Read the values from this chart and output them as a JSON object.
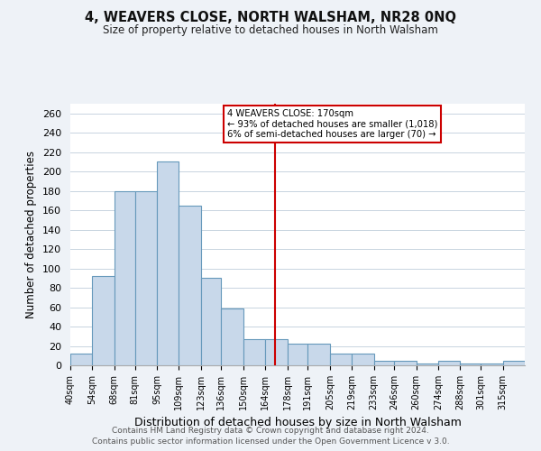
{
  "title": "4, WEAVERS CLOSE, NORTH WALSHAM, NR28 0NQ",
  "subtitle": "Size of property relative to detached houses in North Walsham",
  "xlabel": "Distribution of detached houses by size in North Walsham",
  "ylabel": "Number of detached properties",
  "bin_labels": [
    "40sqm",
    "54sqm",
    "68sqm",
    "81sqm",
    "95sqm",
    "109sqm",
    "123sqm",
    "136sqm",
    "150sqm",
    "164sqm",
    "178sqm",
    "191sqm",
    "205sqm",
    "219sqm",
    "233sqm",
    "246sqm",
    "260sqm",
    "274sqm",
    "288sqm",
    "301sqm",
    "315sqm"
  ],
  "bin_edges": [
    40,
    54,
    68,
    81,
    95,
    109,
    123,
    136,
    150,
    164,
    178,
    191,
    205,
    219,
    233,
    246,
    260,
    274,
    288,
    301,
    315,
    329
  ],
  "bar_heights": [
    12,
    92,
    180,
    180,
    210,
    165,
    90,
    59,
    27,
    27,
    22,
    22,
    12,
    12,
    5,
    5,
    2,
    5,
    2,
    2,
    5
  ],
  "bar_color": "#c8d8ea",
  "bar_edge_color": "#6699bb",
  "vline_x": 170,
  "vline_color": "#cc0000",
  "annotation_line1": "4 WEAVERS CLOSE: 170sqm",
  "annotation_line2": "← 93% of detached houses are smaller (1,018)",
  "annotation_line3": "6% of semi-detached houses are larger (70) →",
  "ylim": [
    0,
    270
  ],
  "yticks": [
    0,
    20,
    40,
    60,
    80,
    100,
    120,
    140,
    160,
    180,
    200,
    220,
    240,
    260
  ],
  "footer_line1": "Contains HM Land Registry data © Crown copyright and database right 2024.",
  "footer_line2": "Contains public sector information licensed under the Open Government Licence v 3.0.",
  "background_color": "#eef2f7",
  "plot_background_color": "#ffffff",
  "grid_color": "#c8d4e0"
}
